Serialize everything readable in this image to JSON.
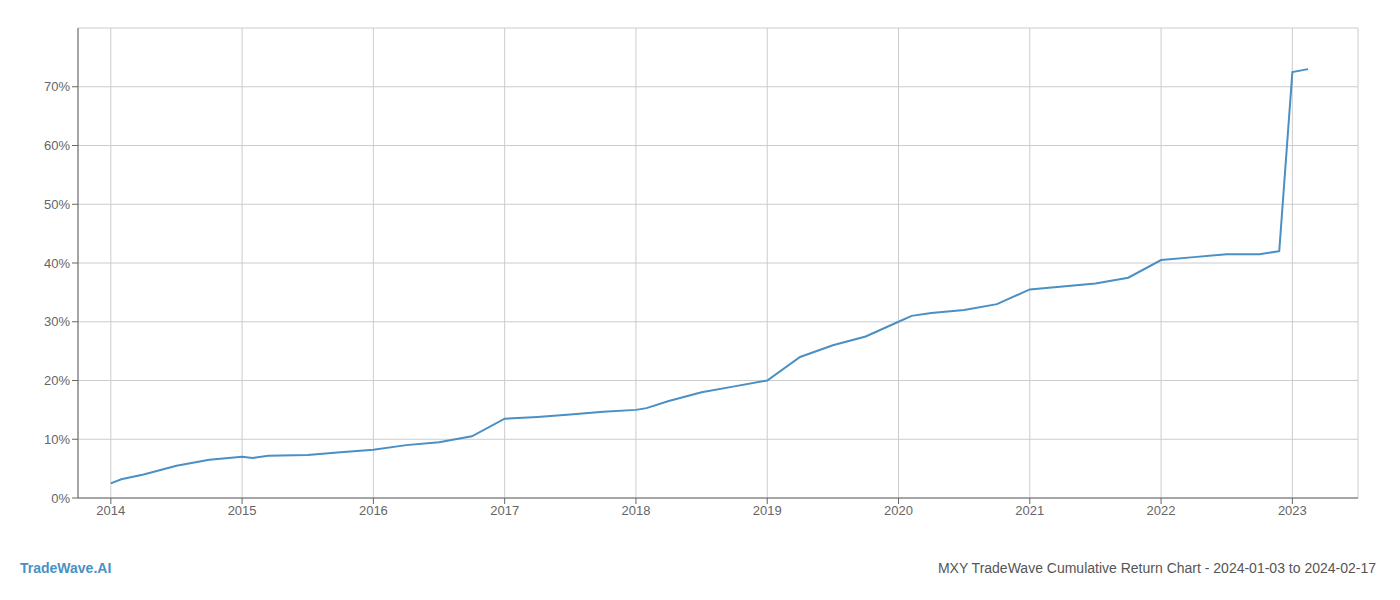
{
  "chart_data": {
    "type": "line",
    "title": "MXY TradeWave Cumulative Return Chart - 2024-01-03 to 2024-02-17",
    "annotations": [
      "TradeWave.AI"
    ],
    "color": "#4a90c4",
    "x": [
      2014.0,
      2014.08,
      2014.25,
      2014.5,
      2014.75,
      2015.0,
      2015.08,
      2015.2,
      2015.5,
      2015.75,
      2016.0,
      2016.25,
      2016.5,
      2016.75,
      2017.0,
      2017.25,
      2017.5,
      2017.75,
      2018.0,
      2018.08,
      2018.25,
      2018.5,
      2018.75,
      2019.0,
      2019.25,
      2019.5,
      2019.75,
      2020.0,
      2020.1,
      2020.25,
      2020.5,
      2020.75,
      2021.0,
      2021.25,
      2021.5,
      2021.75,
      2022.0,
      2022.25,
      2022.5,
      2022.75,
      2022.9,
      2023.0,
      2023.12
    ],
    "values": [
      2.5,
      3.2,
      4.0,
      5.5,
      6.5,
      7.0,
      6.8,
      7.2,
      7.3,
      7.8,
      8.2,
      9.0,
      9.5,
      10.5,
      13.5,
      13.8,
      14.2,
      14.7,
      15.0,
      15.3,
      16.5,
      18.0,
      19.0,
      20.0,
      24.0,
      26.0,
      27.5,
      30.0,
      31.0,
      31.5,
      32.0,
      33.0,
      35.5,
      36.0,
      36.5,
      37.5,
      40.5,
      41.0,
      41.5,
      41.5,
      42.0,
      72.5,
      73.0
    ],
    "xlim": [
      2013.75,
      2023.5
    ],
    "xticks": [
      2014,
      2015,
      2016,
      2017,
      2018,
      2019,
      2020,
      2021,
      2022,
      2023
    ],
    "ylim": [
      0,
      80
    ],
    "yticks": [
      {
        "value": 0,
        "label": "0%"
      },
      {
        "value": 10,
        "label": "10%"
      },
      {
        "value": 20,
        "label": "20%"
      },
      {
        "value": 30,
        "label": "30%"
      },
      {
        "value": 40,
        "label": "40%"
      },
      {
        "value": 50,
        "label": "50%"
      },
      {
        "value": 60,
        "label": "60%"
      },
      {
        "value": 70,
        "label": "70%"
      }
    ],
    "grid": true
  }
}
